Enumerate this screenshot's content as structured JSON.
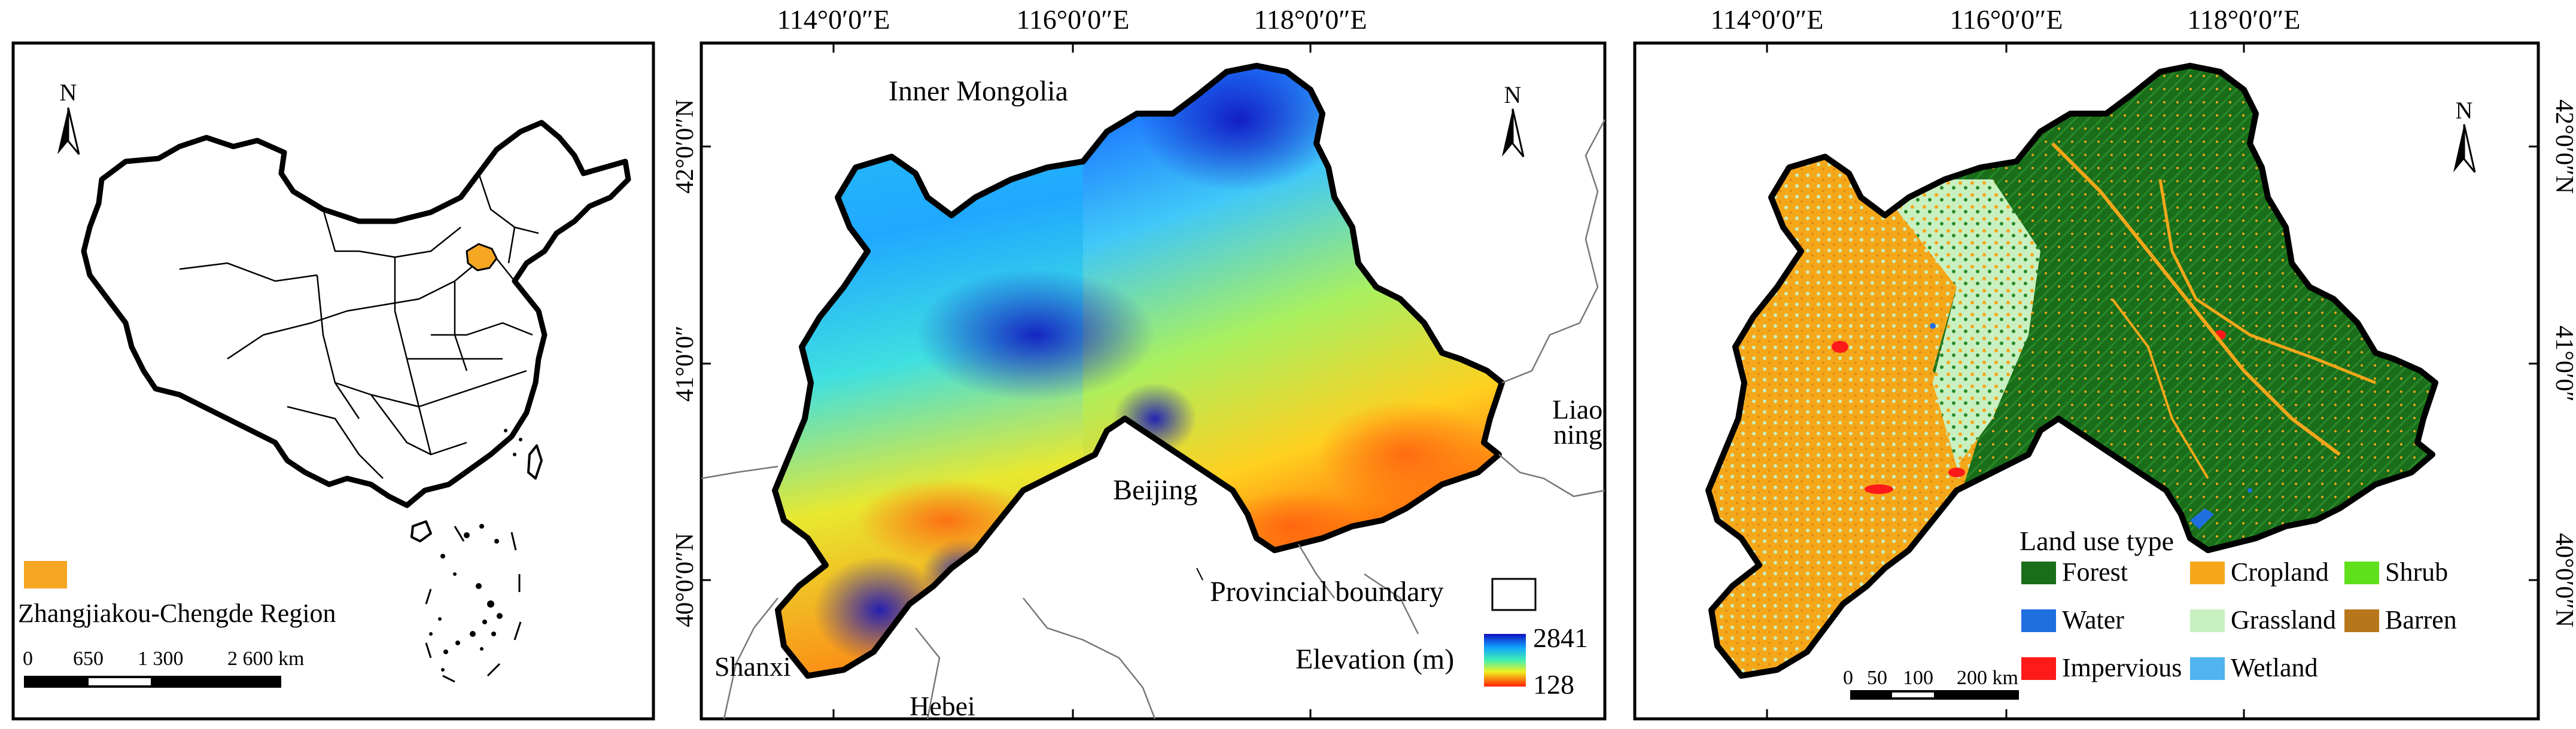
{
  "colors": {
    "highlight": "#f5a623",
    "forest": "#1a6e1a",
    "water": "#1f6fe0",
    "cropland": "#f5a71a",
    "grassland": "#c8f0c0",
    "impervious": "#ff1a1a",
    "shrub": "#5fe01a",
    "barren": "#b8761a",
    "wetland": "#4fb4f0",
    "elev_high": "#1010c0",
    "elev_low": "#ff2000"
  },
  "panel_a": {
    "north": "N",
    "legend_label": "Zhangjiakou-Chengde Region",
    "scalebar": {
      "labels": [
        "0",
        "650",
        "1 300",
        "2 600 km"
      ]
    }
  },
  "panel_b": {
    "north": "N",
    "top_ticks": [
      "114°0′0″E",
      "116°0′0″E",
      "118°0′0″E"
    ],
    "left_ticks": [
      "42°0′0″N",
      "41°0′0″",
      "40°0′0″N"
    ],
    "places": {
      "inner_mongolia": "Inner Mongolia",
      "beijing": "Beijing",
      "liaoning_1": "Liao",
      "liaoning_2": "ning",
      "shanxi": "Shanxi",
      "hebei": "Hebei"
    },
    "legend": {
      "boundary_label": "Provincial boundary",
      "elevation_label": "Elevation (m)",
      "max": "2841",
      "min": "128"
    }
  },
  "panel_c": {
    "north": "N",
    "top_ticks": [
      "114°0′0″E",
      "116°0′0″E",
      "118°0′0″E"
    ],
    "right_ticks": [
      "42°0′0″N",
      "41°0′0″",
      "40°0′0″N"
    ],
    "legend": {
      "title": "Land use type",
      "items": [
        {
          "key": "forest",
          "label": "Forest"
        },
        {
          "key": "cropland",
          "label": "Cropland"
        },
        {
          "key": "shrub",
          "label": "Shrub"
        },
        {
          "key": "water",
          "label": "Water"
        },
        {
          "key": "grassland",
          "label": "Grassland"
        },
        {
          "key": "barren",
          "label": "Barren"
        },
        {
          "key": "impervious",
          "label": "Impervious"
        },
        {
          "key": "wetland",
          "label": "Wetland"
        }
      ]
    },
    "scalebar": {
      "labels": [
        "0",
        "50",
        "100",
        "200 km"
      ]
    }
  }
}
